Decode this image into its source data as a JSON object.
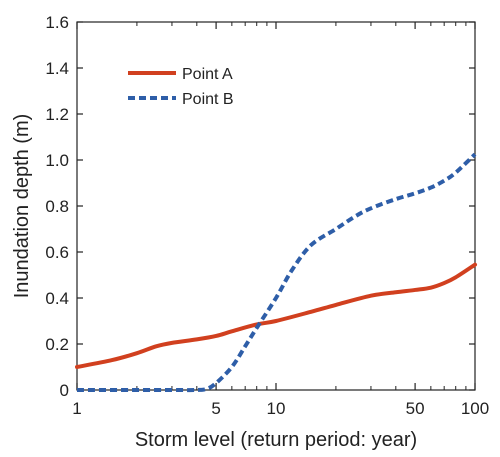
{
  "chart_data": {
    "type": "line",
    "xlabel": "Storm level (return period: year)",
    "ylabel": "Inundation depth (m)",
    "x_scale": "log",
    "xlim": [
      1,
      100
    ],
    "ylim": [
      0,
      1.6
    ],
    "x_ticks": [
      1,
      5,
      10,
      50,
      100
    ],
    "x_tick_labels": [
      "1",
      "5",
      "10",
      "50",
      "100"
    ],
    "y_ticks": [
      0,
      0.2,
      0.4,
      0.6,
      0.8,
      1.0,
      1.2,
      1.4,
      1.6
    ],
    "y_tick_labels": [
      "0",
      "0.2",
      "0.4",
      "0.6",
      "0.8",
      "1.0",
      "1.2",
      "1.4",
      "1.6"
    ],
    "grid": false,
    "legend_position": "top-left",
    "series": [
      {
        "name": "Point A",
        "color": "#d1401f",
        "style": "solid",
        "x": [
          1,
          1.5,
          2,
          2.5,
          3,
          4,
          5,
          6,
          8,
          10,
          15,
          20,
          30,
          40,
          50,
          60,
          70,
          80,
          100
        ],
        "y": [
          0.1,
          0.13,
          0.16,
          0.19,
          0.205,
          0.22,
          0.235,
          0.255,
          0.285,
          0.3,
          0.34,
          0.37,
          0.41,
          0.425,
          0.435,
          0.445,
          0.465,
          0.49,
          0.545
        ]
      },
      {
        "name": "Point B",
        "color": "#2e5ea8",
        "style": "dashed",
        "x": [
          1,
          2,
          3,
          4,
          4.5,
          5,
          6,
          7,
          8,
          10,
          12,
          15,
          20,
          25,
          30,
          40,
          50,
          60,
          70,
          80,
          100
        ],
        "y": [
          0,
          0,
          0,
          0,
          0.005,
          0.03,
          0.1,
          0.19,
          0.27,
          0.4,
          0.52,
          0.63,
          0.7,
          0.755,
          0.79,
          0.83,
          0.855,
          0.88,
          0.91,
          0.945,
          1.025
        ]
      }
    ]
  }
}
